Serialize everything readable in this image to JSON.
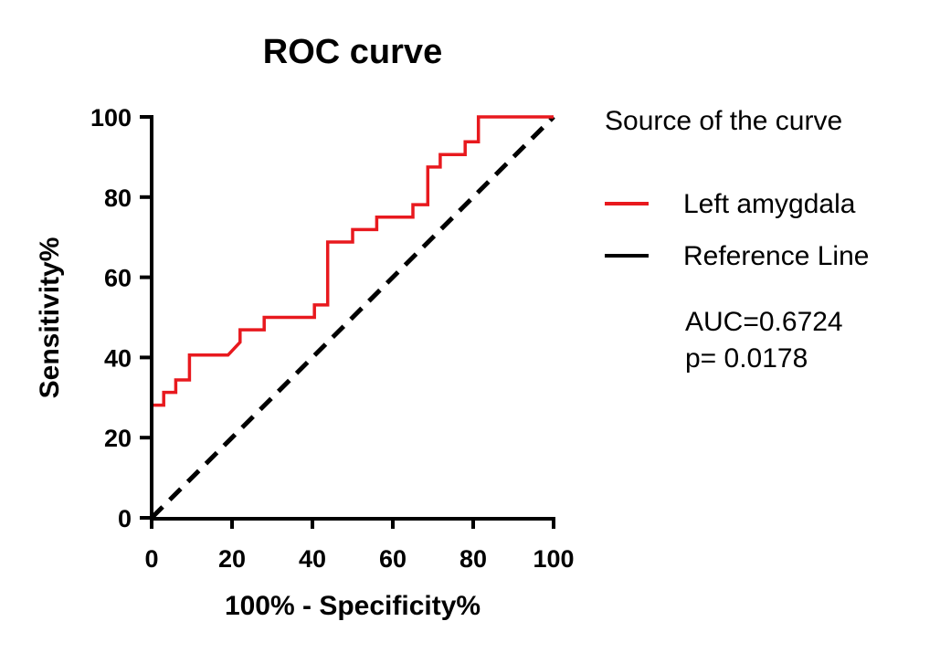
{
  "chart_data": {
    "type": "line",
    "title": "ROC curve",
    "xlabel": "100% - Specificity%",
    "ylabel": "Sensitivity%",
    "xlim": [
      0,
      100
    ],
    "ylim": [
      0,
      100
    ],
    "xticks": [
      0,
      20,
      40,
      60,
      80,
      100
    ],
    "yticks": [
      0,
      20,
      40,
      60,
      80,
      100
    ],
    "grid": false,
    "legend_title": "Source of the curve",
    "legend_position": "right",
    "series": [
      {
        "name": "Left amygdala",
        "color": "#e8191e",
        "style": "solid",
        "x": [
          0,
          0,
          3,
          3,
          6,
          6,
          9.4,
          9.4,
          19,
          22,
          22,
          28,
          28,
          40.5,
          40.5,
          43.8,
          43.8,
          50,
          50,
          56,
          56,
          65,
          65,
          68.7,
          68.7,
          71.8,
          71.8,
          78,
          78,
          81.3,
          81.3,
          100
        ],
        "y": [
          0,
          28.1,
          28.1,
          31.3,
          31.3,
          34.4,
          34.4,
          40.6,
          40.6,
          43.8,
          46.9,
          46.9,
          50,
          50,
          53.1,
          53.1,
          68.8,
          68.8,
          71.9,
          71.9,
          75,
          75,
          78.1,
          78.1,
          87.5,
          87.5,
          90.6,
          90.6,
          93.8,
          93.8,
          100,
          100
        ]
      },
      {
        "name": "Reference Line",
        "color": "#000000",
        "style": "dashed",
        "x": [
          0,
          100
        ],
        "y": [
          0,
          100
        ]
      }
    ],
    "annotations": [
      "AUC=0.6724",
      "p= 0.0178"
    ]
  }
}
